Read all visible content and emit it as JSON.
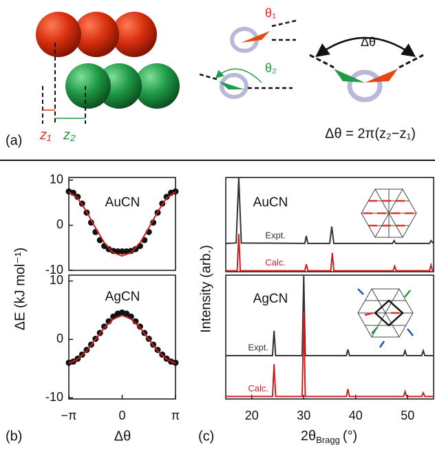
{
  "panel_a": {
    "label": "(a)",
    "z1": "z₁",
    "z2": "z₂",
    "theta1": "θ₁",
    "theta2": "θ₂",
    "dtheta": "Δθ",
    "equation": "Δθ = 2π(z₂−z₁)"
  },
  "panel_b": {
    "label": "(b)",
    "ylabel": "ΔE (kJ mol⁻¹)",
    "xlabel": "Δθ"
  },
  "panel_c": {
    "label": "(c)",
    "ylabel": "Intensity (arb.)",
    "xlabel": "2θ",
    "xlabel_sub": "Bragg",
    "xlabel_unit": "(°)"
  },
  "chart_data": [
    {
      "type": "line",
      "title": "AuCN",
      "xlim": [
        -3.1416,
        3.1416
      ],
      "ylim": [
        -10,
        10.6
      ],
      "yticks": [
        {
          "value": 10,
          "label": "10"
        },
        0,
        -10
      ],
      "series": [
        {
          "color": "#111111",
          "style": "markers",
          "x": [
            -3.1416,
            -2.88,
            -2.62,
            -2.36,
            -2.09,
            -1.83,
            -1.57,
            -1.31,
            -1.05,
            -0.79,
            -0.52,
            -0.26,
            0,
            0.26,
            0.52,
            0.79,
            1.05,
            1.31,
            1.57,
            1.83,
            2.09,
            2.36,
            2.62,
            2.88,
            3.1416
          ],
          "values": [
            7.5,
            7.2,
            6.3,
            4.8,
            2.8,
            0.6,
            -1.5,
            -3.3,
            -4.6,
            -5.3,
            -5.7,
            -5.8,
            -5.8,
            -5.8,
            -5.7,
            -5.3,
            -4.6,
            -3.3,
            -1.5,
            0.6,
            2.8,
            4.8,
            6.3,
            7.2,
            7.5
          ]
        },
        {
          "color": "#cc1f1f",
          "style": "line",
          "x": [
            -3.1416,
            -2.62,
            -2.09,
            -1.57,
            -1.05,
            -0.52,
            0,
            0.52,
            1.05,
            1.57,
            2.09,
            2.62,
            3.1416
          ],
          "values": [
            7.4,
            6.0,
            3.0,
            -0.6,
            -3.9,
            -6.1,
            -6.8,
            -6.1,
            -3.9,
            -0.6,
            3.0,
            6.0,
            7.4
          ]
        }
      ]
    },
    {
      "type": "line",
      "title": "AgCN",
      "xlim": [
        -3.1416,
        3.1416
      ],
      "ylim": [
        -10.2,
        11
      ],
      "yticks": [
        10,
        0,
        -10
      ],
      "xticks": [
        {
          "value": -3.1416,
          "label": "−π"
        },
        0,
        {
          "value": 3.1416,
          "label": "π"
        }
      ],
      "series": [
        {
          "color": "#111111",
          "style": "markers",
          "x": [
            -3.1416,
            -2.88,
            -2.62,
            -2.36,
            -2.09,
            -1.83,
            -1.57,
            -1.31,
            -1.05,
            -0.79,
            -0.52,
            -0.26,
            0,
            0.26,
            0.52,
            0.79,
            1.05,
            1.31,
            1.57,
            1.83,
            2.09,
            2.36,
            2.62,
            2.88,
            3.1416
          ],
          "values": [
            -4.0,
            -3.8,
            -3.3,
            -2.6,
            -1.8,
            -0.9,
            0.1,
            1.1,
            2.2,
            3.1,
            3.9,
            4.4,
            4.6,
            4.4,
            3.9,
            3.1,
            2.2,
            1.1,
            0.1,
            -0.9,
            -1.8,
            -2.6,
            -3.3,
            -3.8,
            -4.0
          ]
        },
        {
          "color": "#cc1f1f",
          "style": "line",
          "x": [
            -3.1416,
            -2.62,
            -2.09,
            -1.57,
            -1.05,
            -0.52,
            0,
            0.52,
            1.05,
            1.57,
            2.09,
            2.62,
            3.1416
          ],
          "values": [
            -4.1,
            -3.4,
            -2.0,
            0.0,
            2.0,
            3.5,
            4.1,
            3.5,
            2.0,
            0.0,
            -2.0,
            -3.4,
            -4.1
          ]
        }
      ]
    },
    {
      "type": "line",
      "title": "AuCN",
      "xlim": [
        15,
        55
      ],
      "ylim": [
        0,
        100
      ],
      "series": [
        {
          "name": "Expt.",
          "color": "#333333",
          "style": "line",
          "x": [
            15,
            17,
            17.5,
            18,
            30.2,
            30.5,
            30.8,
            35,
            35.4,
            35.8,
            47.1,
            47.4,
            47.7,
            54.2,
            54.5,
            55
          ],
          "values": [
            30,
            30.5,
            100,
            30.5,
            30,
            38,
            30,
            30,
            48,
            30,
            30,
            33,
            30,
            30,
            33,
            30
          ]
        },
        {
          "name": "Calc.",
          "color": "#cc1f1f",
          "style": "line",
          "x": [
            15,
            17.2,
            17.5,
            17.8,
            30.2,
            30.5,
            30.8,
            35.2,
            35.5,
            35.8,
            47.2,
            47.5,
            47.8,
            54.2,
            54.5,
            54.8,
            55
          ],
          "values": [
            1,
            1,
            40,
            1,
            1,
            8,
            1,
            1,
            20,
            1,
            1,
            6,
            1,
            1,
            7,
            1,
            1
          ]
        }
      ]
    },
    {
      "type": "line",
      "title": "AgCN",
      "xlim": [
        15,
        55
      ],
      "ylim": [
        0,
        100
      ],
      "xticks": [
        20,
        30,
        40,
        50
      ],
      "series": [
        {
          "name": "Expt.",
          "color": "#333333",
          "style": "line",
          "x": [
            15,
            24,
            24.3,
            24.6,
            29.7,
            30,
            30.3,
            38.2,
            38.5,
            38.8,
            49.2,
            49.5,
            49.8,
            52.7,
            53,
            53.3,
            55
          ],
          "values": [
            35,
            35,
            55,
            35,
            35,
            100,
            35,
            35,
            40,
            35,
            35,
            39,
            35,
            35,
            39,
            35,
            35
          ]
        },
        {
          "name": "Calc.",
          "color": "#cc1f1f",
          "style": "line",
          "x": [
            15,
            24,
            24.3,
            24.6,
            29.7,
            30,
            30.3,
            38.2,
            38.5,
            38.8,
            49.2,
            49.5,
            49.8,
            52.7,
            53,
            53.3,
            55
          ],
          "values": [
            2,
            2,
            28,
            2,
            2,
            70,
            2,
            2,
            8,
            2,
            2,
            6,
            2,
            2,
            5,
            2,
            2
          ]
        }
      ]
    }
  ]
}
